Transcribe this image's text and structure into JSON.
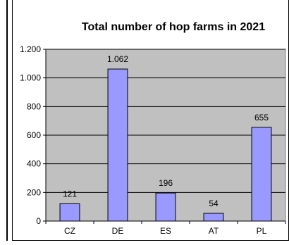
{
  "chart_data": {
    "type": "bar",
    "title": "Total number of hop farms in 2021",
    "categories": [
      "CZ",
      "DE",
      "ES",
      "AT",
      "PL"
    ],
    "values": [
      121,
      1062,
      196,
      54,
      655
    ],
    "data_labels": [
      "121",
      "1.062",
      "196",
      "54",
      "655"
    ],
    "ylim": [
      0,
      1200
    ],
    "yticks": [
      0,
      200,
      400,
      600,
      800,
      1000,
      1200
    ],
    "ytick_labels": [
      "0",
      "200",
      "400",
      "600",
      "800",
      "1.000",
      "1.200"
    ],
    "grid": true,
    "legend": false,
    "colors": {
      "plot_background": "#c0c0c0",
      "bar_fill": "#9999ff",
      "bar_stroke": "#000000",
      "grid": "#000000"
    }
  }
}
